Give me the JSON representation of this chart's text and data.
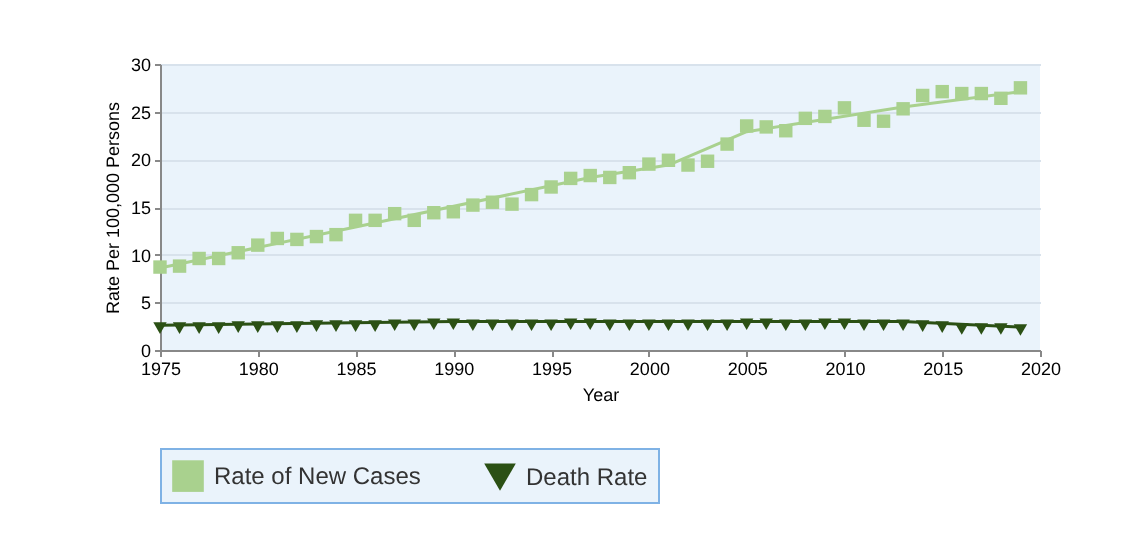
{
  "chart_data": {
    "type": "scatter",
    "xlabel": "Year",
    "ylabel": "Rate Per 100,000 Persons",
    "xlim": [
      1975,
      2020
    ],
    "xticks": [
      1975,
      1980,
      1985,
      1990,
      1995,
      2000,
      2005,
      2010,
      2015,
      2020
    ],
    "ylim": [
      0,
      30
    ],
    "yticks": [
      0,
      5,
      10,
      15,
      20,
      25,
      30
    ],
    "grid": "y",
    "legend": "bottom",
    "x": [
      1975,
      1976,
      1977,
      1978,
      1979,
      1980,
      1981,
      1982,
      1983,
      1984,
      1985,
      1986,
      1987,
      1988,
      1989,
      1990,
      1991,
      1992,
      1993,
      1994,
      1995,
      1996,
      1997,
      1998,
      1999,
      2000,
      2001,
      2002,
      2003,
      2004,
      2005,
      2006,
      2007,
      2008,
      2009,
      2010,
      2011,
      2012,
      2013,
      2014,
      2015,
      2016,
      2017,
      2018,
      2019
    ],
    "series": [
      {
        "name": "Rate of New Cases",
        "color": "#a9d18e",
        "marker": "square",
        "values": [
          8.7,
          8.8,
          9.6,
          9.6,
          10.2,
          11.0,
          11.7,
          11.6,
          11.9,
          12.1,
          13.6,
          13.6,
          14.3,
          13.6,
          14.4,
          14.5,
          15.2,
          15.5,
          15.3,
          16.3,
          17.1,
          18.0,
          18.3,
          18.1,
          18.6,
          19.5,
          19.9,
          19.4,
          19.8,
          21.6,
          23.5,
          23.4,
          23.0,
          24.3,
          24.5,
          25.4,
          24.1,
          24.0,
          25.3,
          26.7,
          27.1,
          26.9,
          26.9,
          26.4,
          27.5
        ]
      },
      {
        "name": "Death Rate",
        "color": "#2b5014",
        "marker": "triangle",
        "values": [
          2.3,
          2.3,
          2.3,
          2.3,
          2.4,
          2.4,
          2.4,
          2.4,
          2.5,
          2.5,
          2.5,
          2.5,
          2.6,
          2.6,
          2.7,
          2.7,
          2.6,
          2.6,
          2.6,
          2.6,
          2.6,
          2.7,
          2.7,
          2.6,
          2.6,
          2.6,
          2.6,
          2.6,
          2.6,
          2.6,
          2.7,
          2.7,
          2.6,
          2.6,
          2.7,
          2.7,
          2.6,
          2.6,
          2.6,
          2.5,
          2.4,
          2.2,
          2.2,
          2.2,
          2.1
        ]
      },
      {
        "type": "line",
        "color": "#a9d18e",
        "marker": "none",
        "x": [
          1975,
          1985,
          1997,
          2001,
          2005,
          2013,
          2019
        ],
        "values": [
          8.6,
          12.9,
          18.1,
          19.4,
          22.9,
          25.5,
          27.1
        ]
      },
      {
        "type": "line",
        "color": "#2b5014",
        "marker": "none",
        "x": [
          1975,
          1990,
          2013,
          2019
        ],
        "values": [
          2.6,
          3.0,
          3.0,
          2.4
        ]
      }
    ]
  }
}
